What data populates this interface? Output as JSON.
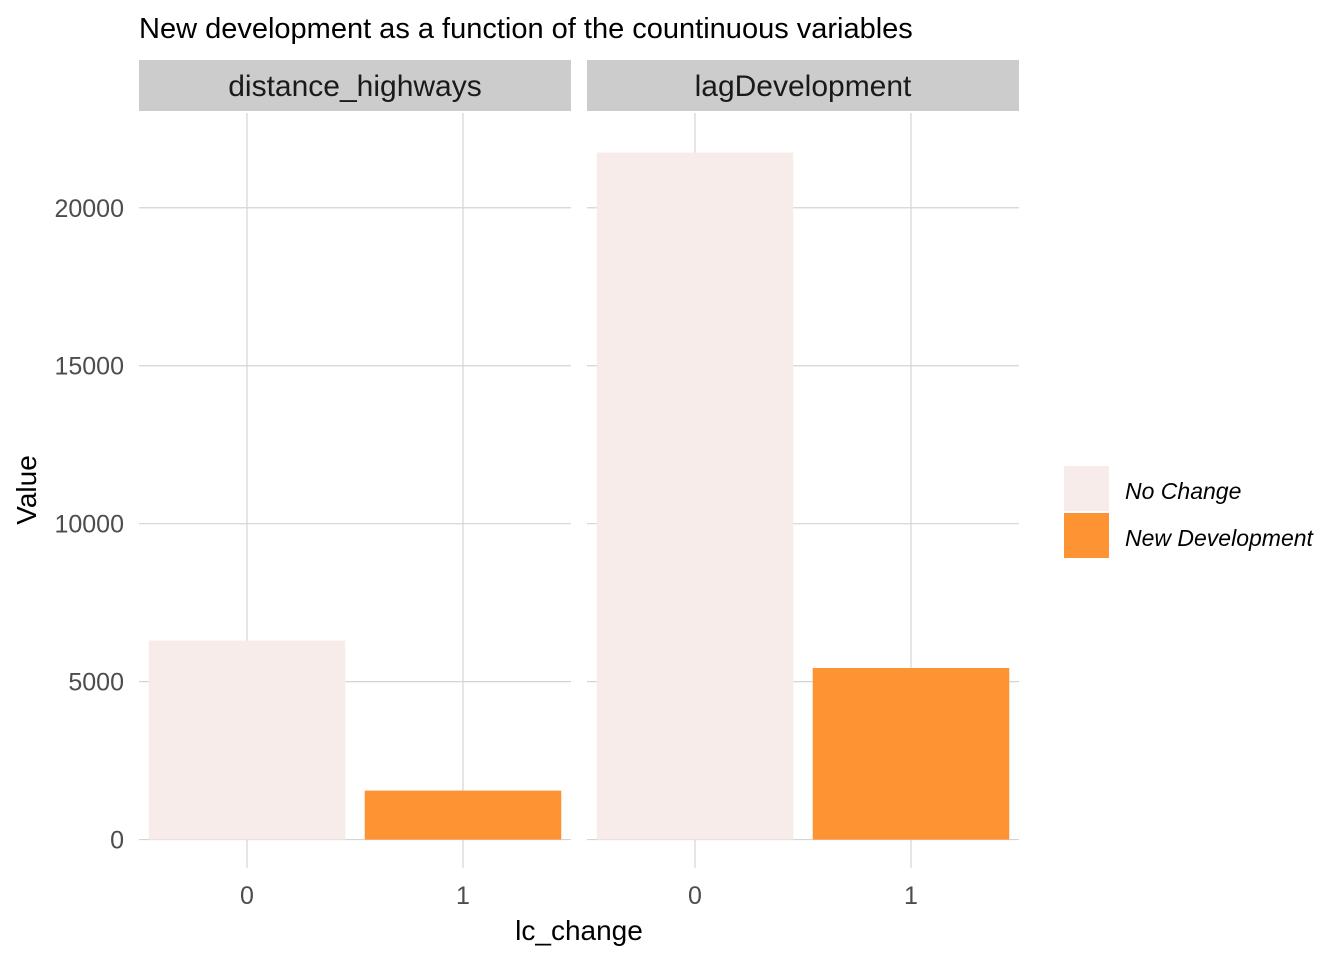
{
  "chart_data": {
    "type": "bar",
    "title": "New development as a function of the countinuous variables",
    "xlabel": "lc_change",
    "ylabel": "Value",
    "ylim": [
      -900,
      23000
    ],
    "yticks": [
      0,
      5000,
      10000,
      15000,
      20000
    ],
    "ytick_labels": [
      "0",
      "5000",
      "10000",
      "15000",
      "20000"
    ],
    "categories": [
      "0",
      "1"
    ],
    "grid": true,
    "legend_position": "right",
    "facets": [
      {
        "label": "distance_highways",
        "values": [
          6300,
          1550
        ]
      },
      {
        "label": "lagDevelopment",
        "values": [
          21750,
          5430
        ]
      }
    ],
    "legend": [
      {
        "label": "No Change",
        "color": "#f7ecea"
      },
      {
        "label": "New Development",
        "color": "#fd9333"
      }
    ]
  }
}
